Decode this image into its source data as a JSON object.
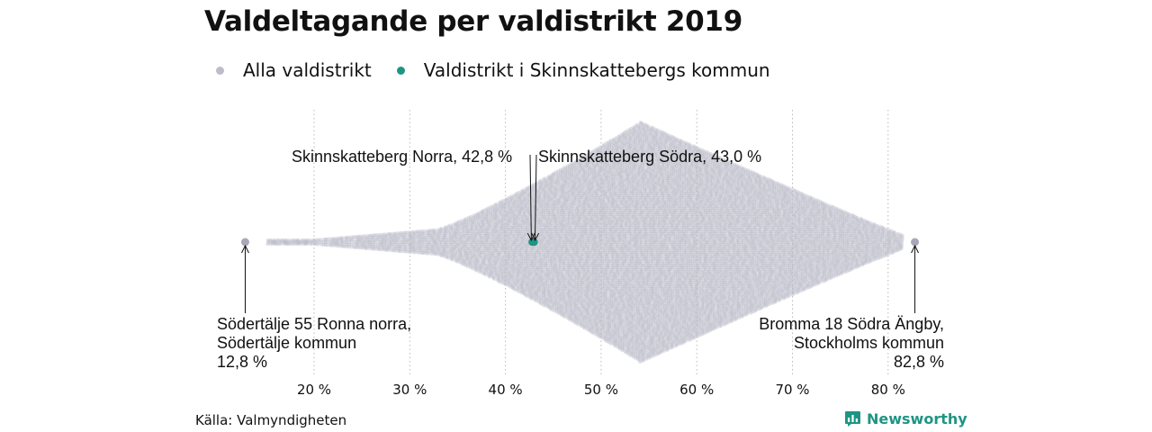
{
  "title": "Valdeltagande per valdistrikt 2019",
  "legend": [
    {
      "label": "Alla valdistrikt",
      "color": "#bdbcca"
    },
    {
      "label": "Valdistrikt i Skinnskattebergs kommun",
      "color": "#1e9583"
    }
  ],
  "chart_data": {
    "type": "scatter",
    "title": "Valdeltagande per valdistrikt 2019",
    "xlim": [
      10,
      85
    ],
    "x_ticks": [
      "20 %",
      "30 %",
      "40 %",
      "50 %",
      "60 %",
      "70 %",
      "80 %"
    ],
    "x_tick_values": [
      20,
      30,
      40,
      50,
      60,
      70,
      80
    ],
    "grid": "vertical dotted",
    "series": [
      {
        "name": "Alla valdistrikt",
        "color": "#bdbcca",
        "distribution": "beeswarm",
        "min": 12.8,
        "max": 82.8,
        "peak": 54
      },
      {
        "name": "Valdistrikt i Skinnskattebergs kommun",
        "color": "#1e9583",
        "points": [
          {
            "label": "Skinnskatteberg Norra",
            "x": 42.8
          },
          {
            "label": "Skinnskatteberg Södra",
            "x": 43.0
          }
        ]
      }
    ],
    "annotations": [
      {
        "x": 42.8,
        "lines": [
          "Skinnskatteberg Norra, 42,8 %"
        ]
      },
      {
        "x": 43.0,
        "lines": [
          "Skinnskatteberg Södra, 43,0 %"
        ]
      },
      {
        "x": 12.8,
        "lines": [
          "Södertälje 55 Ronna norra,",
          "Södertälje kommun",
          "12,8 %"
        ]
      },
      {
        "x": 82.8,
        "lines": [
          "Bromma 18 Södra Ängby,",
          "Stockholms kommun",
          "82,8 %"
        ]
      }
    ]
  },
  "source": "Källa: Valmyndigheten",
  "brand": "Newsworthy",
  "brand_color": "#1e9583"
}
